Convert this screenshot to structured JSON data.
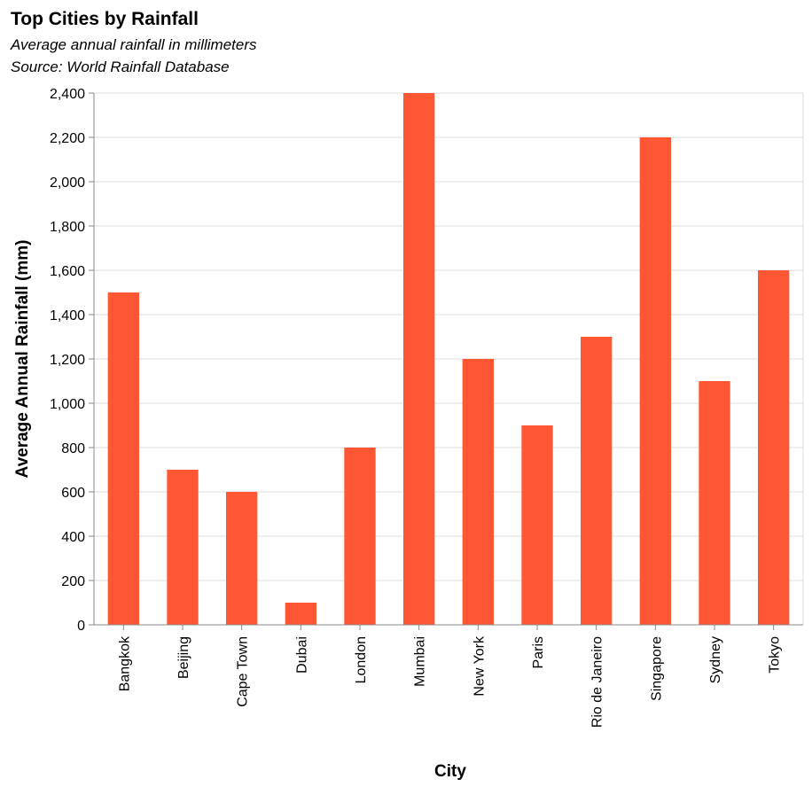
{
  "chart_data": {
    "type": "bar",
    "title": "Top Cities by Rainfall",
    "subtitle": [
      "Average annual rainfall in millimeters",
      "Source: World Rainfall Database"
    ],
    "xlabel": "City",
    "ylabel": "Average Annual Rainfall (mm)",
    "categories": [
      "Bangkok",
      "Beijing",
      "Cape Town",
      "Dubai",
      "London",
      "Mumbai",
      "New York",
      "Paris",
      "Rio de Janeiro",
      "Singapore",
      "Sydney",
      "Tokyo"
    ],
    "values": [
      1500,
      700,
      600,
      100,
      800,
      2400,
      1200,
      900,
      1300,
      2200,
      1100,
      1600
    ],
    "ylim": [
      0,
      2400
    ],
    "yticks": [
      0,
      200,
      400,
      600,
      800,
      1000,
      1200,
      1400,
      1600,
      1800,
      2000,
      2200,
      2400
    ],
    "ytick_labels": [
      "0",
      "200",
      "400",
      "600",
      "800",
      "1,000",
      "1,200",
      "1,400",
      "1,600",
      "1,800",
      "2,000",
      "2,200",
      "2,400"
    ],
    "grid": true,
    "bar_color": "#ff5733"
  }
}
